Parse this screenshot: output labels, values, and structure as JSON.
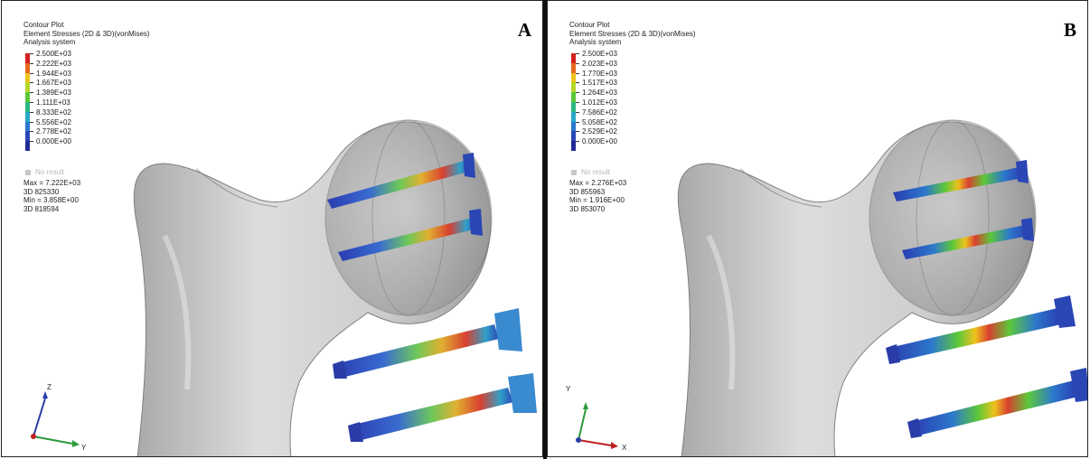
{
  "panels": [
    {
      "letter": "A",
      "header": [
        "Contour Plot",
        "Element Stresses (2D & 3D)(vonMises)",
        "Analysis system"
      ],
      "legend_values": [
        "2.500E+03",
        "2.222E+03",
        "1.944E+03",
        "1.667E+03",
        "1.389E+03",
        "1.111E+03",
        "8.333E+02",
        "5.556E+02",
        "2.778E+02",
        "0.000E+00"
      ],
      "no_result": "No result",
      "max": "Max = 7.222E+03",
      "max_id": "3D 825330",
      "min": "Min = 3.858E+00",
      "min_id": "3D 818594",
      "axis_up": "Z",
      "axis_right": "Y"
    },
    {
      "letter": "B",
      "header": [
        "Contour Plot",
        "Element Stresses (2D & 3D)(vonMises)",
        "Analysis system"
      ],
      "legend_values": [
        "2.500E+03",
        "2.023E+03",
        "1.770E+03",
        "1.517E+03",
        "1.264E+03",
        "1.012E+03",
        "7.586E+02",
        "5.058E+02",
        "2.529E+02",
        "0.000E+00"
      ],
      "no_result": "No result",
      "max": "Max = 2.276E+03",
      "max_id": "3D 855963",
      "min": "Min = 1.916E+00",
      "min_id": "3D 853070",
      "axis_up": "Y",
      "axis_right": "X"
    }
  ],
  "legend_colors": [
    "#d42020",
    "#e66a1c",
    "#eec21c",
    "#b6d62a",
    "#5cc83a",
    "#2cb884",
    "#2aa6c6",
    "#2c78cc",
    "#2a46b4",
    "#202c94"
  ],
  "no_result_color": "#c8c8c8"
}
